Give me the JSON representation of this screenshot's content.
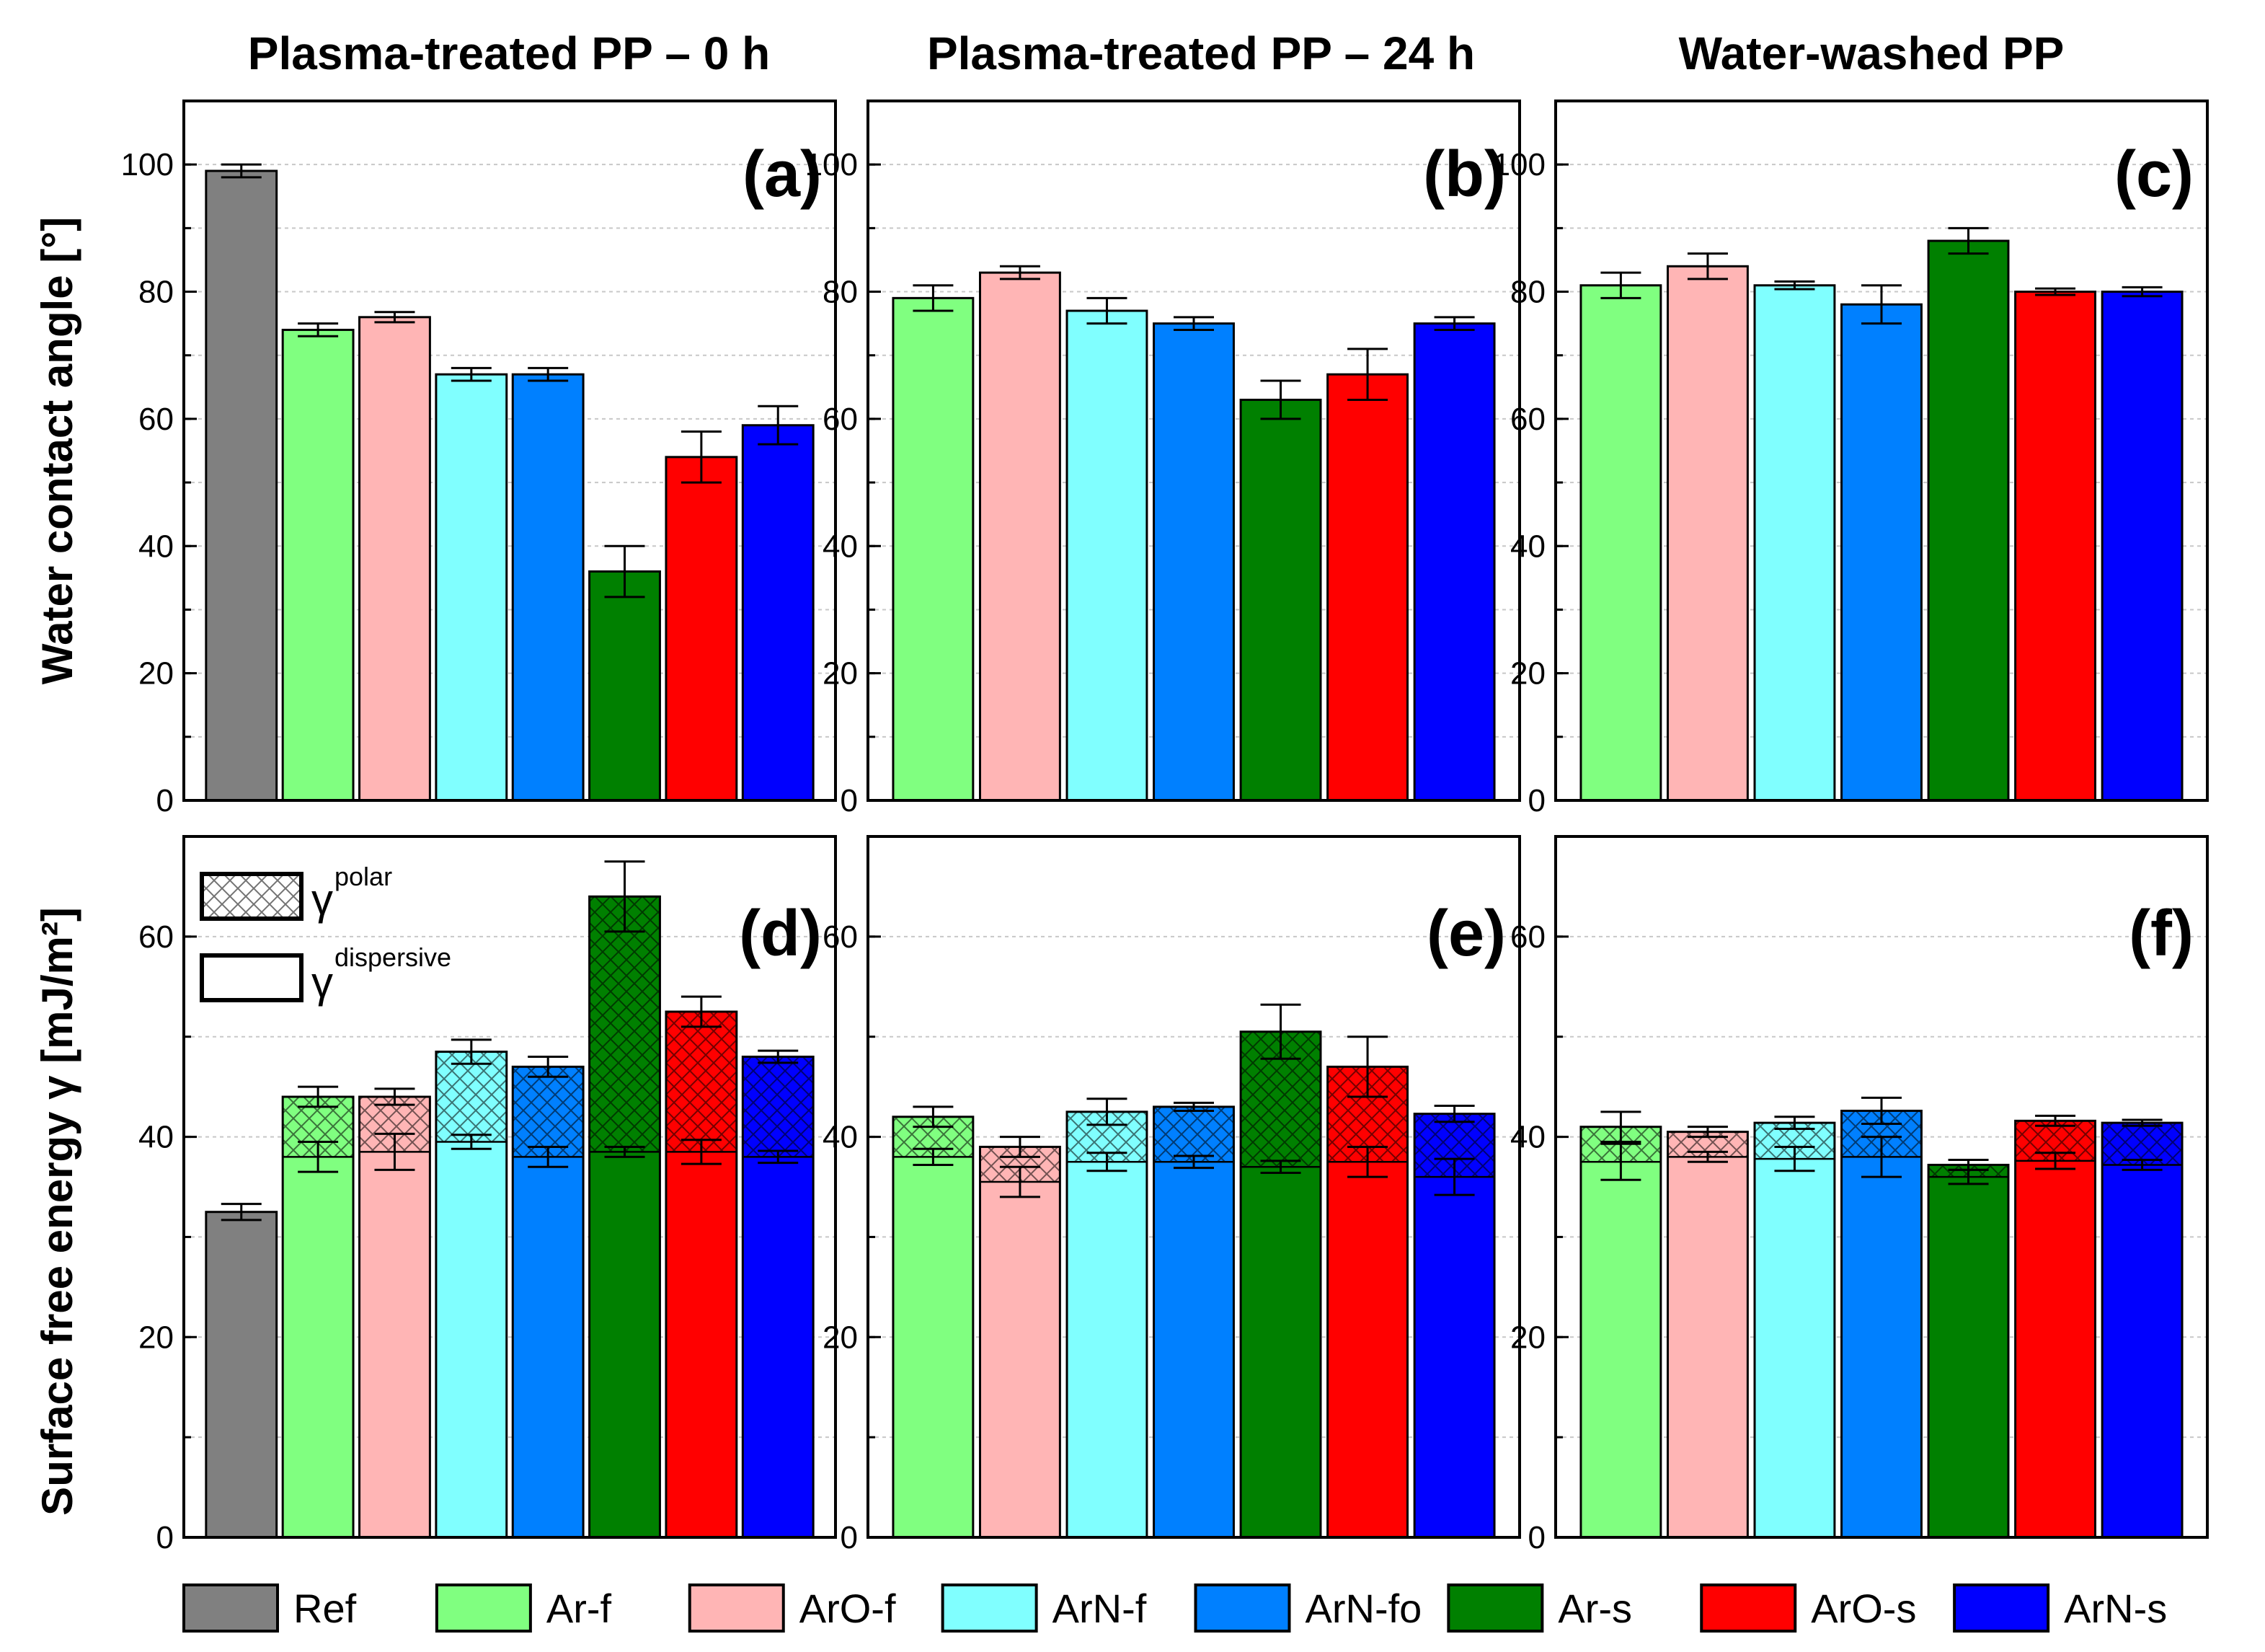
{
  "chart_data": [
    {
      "panel": "(a)",
      "type": "bar",
      "title": "Plasma-treated PP – 0 h",
      "ylabel": "Water contact angle [°]",
      "ylim": [
        0,
        110
      ],
      "yticks": [
        0,
        20,
        40,
        60,
        80,
        100
      ],
      "grid": true,
      "categories": [
        "Ref",
        "Ar-f",
        "ArO-f",
        "ArN-f",
        "ArN-fo",
        "Ar-s",
        "ArO-s",
        "ArN-s"
      ],
      "values": [
        99,
        74,
        76,
        67,
        67,
        36,
        54,
        59
      ],
      "errors": [
        1,
        1,
        0.8,
        1,
        1,
        4,
        4,
        3
      ]
    },
    {
      "panel": "(b)",
      "type": "bar",
      "title": "Plasma-treated PP – 24 h",
      "ylim": [
        0,
        110
      ],
      "yticks": [
        0,
        20,
        40,
        60,
        80,
        100
      ],
      "grid": true,
      "categories": [
        "Ar-f",
        "ArO-f",
        "ArN-f",
        "ArN-fo",
        "Ar-s",
        "ArO-s",
        "ArN-s"
      ],
      "values": [
        79,
        83,
        77,
        75,
        63,
        67,
        75
      ],
      "errors": [
        2,
        1,
        2,
        1,
        3,
        4,
        1
      ]
    },
    {
      "panel": "(c)",
      "type": "bar",
      "title": "Water-washed PP",
      "ylim": [
        0,
        110
      ],
      "yticks": [
        0,
        20,
        40,
        60,
        80,
        100
      ],
      "grid": true,
      "categories": [
        "Ar-f",
        "ArO-f",
        "ArN-f",
        "ArN-fo",
        "Ar-s",
        "ArO-s",
        "ArN-s"
      ],
      "values": [
        81,
        84,
        81,
        78,
        88,
        80,
        80
      ],
      "errors": [
        2,
        2,
        0.6,
        3,
        2,
        0.5,
        0.7
      ]
    },
    {
      "panel": "(d)",
      "type": "bar",
      "stacked": true,
      "ylabel": "Surface free energy γ [mJ/m²]",
      "ylim": [
        0,
        70
      ],
      "yticks": [
        0,
        20,
        40,
        60
      ],
      "grid": true,
      "categories": [
        "Ref",
        "Ar-f",
        "ArO-f",
        "ArN-f",
        "ArN-fo",
        "Ar-s",
        "ArO-s",
        "ArN-s"
      ],
      "series": [
        {
          "name": "dispersive",
          "values": [
            32.5,
            38,
            38.5,
            39.5,
            38,
            38.5,
            38.5,
            38
          ],
          "errors": [
            0.8,
            1.5,
            1.8,
            0.7,
            1,
            0.5,
            1.2,
            0.6
          ]
        },
        {
          "name": "polar",
          "values": [
            0,
            6,
            5.5,
            9,
            9,
            25.5,
            14,
            10
          ],
          "errors": [
            0.8,
            1,
            0.8,
            1.2,
            1,
            3.5,
            1.5,
            0.6
          ]
        }
      ]
    },
    {
      "panel": "(e)",
      "type": "bar",
      "stacked": true,
      "ylim": [
        0,
        70
      ],
      "yticks": [
        0,
        20,
        40,
        60
      ],
      "grid": true,
      "categories": [
        "Ar-f",
        "ArO-f",
        "ArN-f",
        "ArN-fo",
        "Ar-s",
        "ArO-s",
        "ArN-s"
      ],
      "series": [
        {
          "name": "dispersive",
          "values": [
            38,
            35.5,
            37.5,
            37.5,
            37,
            37.5,
            36
          ],
          "errors": [
            0.8,
            1.5,
            0.9,
            0.6,
            0.6,
            1.5,
            1.8
          ]
        },
        {
          "name": "polar",
          "values": [
            4,
            3.5,
            5,
            5.5,
            13.5,
            9.5,
            6.3
          ],
          "errors": [
            1,
            1,
            1.3,
            0.4,
            2.7,
            3,
            0.8
          ]
        }
      ]
    },
    {
      "panel": "(f)",
      "type": "bar",
      "stacked": true,
      "ylim": [
        0,
        70
      ],
      "yticks": [
        0,
        20,
        40,
        60
      ],
      "grid": true,
      "categories": [
        "Ar-f",
        "ArO-f",
        "ArN-f",
        "ArN-fo",
        "Ar-s",
        "ArO-s",
        "ArN-s"
      ],
      "series": [
        {
          "name": "dispersive",
          "values": [
            37.5,
            38,
            37.8,
            38,
            36,
            37.6,
            37.2
          ],
          "errors": [
            1.8,
            0.5,
            1.2,
            2,
            0.7,
            0.8,
            0.5
          ]
        },
        {
          "name": "polar",
          "values": [
            3.5,
            2.5,
            3.6,
            4.6,
            1.2,
            4,
            4.2
          ],
          "errors": [
            1.5,
            0.5,
            0.6,
            1.3,
            0.5,
            0.5,
            0.3
          ]
        }
      ]
    }
  ],
  "legend": {
    "position": "bottom",
    "items": [
      {
        "label": "Ref",
        "color": "#808080"
      },
      {
        "label": "Ar-f",
        "color": "#80ff80"
      },
      {
        "label": "ArO-f",
        "color": "#ffb5b5"
      },
      {
        "label": "ArN-f",
        "color": "#80ffff"
      },
      {
        "label": "ArN-fo",
        "color": "#0080ff"
      },
      {
        "label": "Ar-s",
        "color": "#008000"
      },
      {
        "label": "ArO-s",
        "color": "#ff0000"
      },
      {
        "label": "ArN-s",
        "color": "#0000ff"
      }
    ]
  },
  "inset_key": {
    "polar_symbol": "γ",
    "polar_label": "polar",
    "dispersive_symbol": "γ",
    "dispersive_label": "dispersive"
  }
}
